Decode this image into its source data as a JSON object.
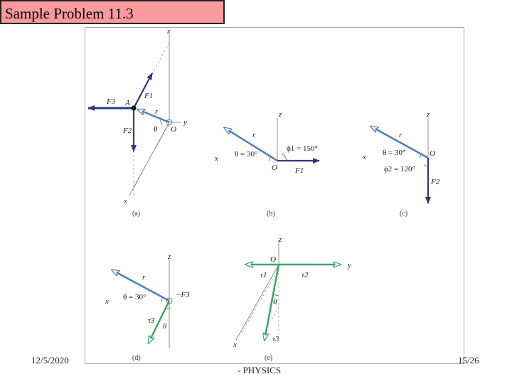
{
  "slide": {
    "title": "Sample Problem 11.3",
    "date": "12/5/2020",
    "footer_center": "- PHYSICS",
    "page": "15/26"
  },
  "colors": {
    "title_bg": "#f99a9f",
    "force_vector": "#2e3586",
    "radius_vector": "#4a7fc0",
    "torque_vector": "#3aa56a"
  },
  "figure": {
    "panel_a": {
      "caption": "(a)",
      "axis_z": "z",
      "axis_y": "y",
      "axis_x": "x",
      "point_a": "A",
      "origin": "O",
      "f1": "F1",
      "f2": "F2",
      "f3": "F3",
      "r": "r",
      "theta": "θ"
    },
    "panel_b": {
      "caption": "(b)",
      "axis_z": "z",
      "axis_x": "x",
      "origin": "O",
      "r": "r",
      "theta_eq": "θ = 30°",
      "phi1": "ϕ1 = 150°",
      "f1": "F1"
    },
    "panel_c": {
      "caption": "(c)",
      "axis_z": "z",
      "axis_x": "x",
      "origin": "O",
      "r": "r",
      "theta_eq": "θ = 30°",
      "phi2": "ϕ2 = 120°",
      "f2": "F2"
    },
    "panel_d": {
      "caption": "(d)",
      "axis_z": "z",
      "axis_x": "x",
      "r": "r",
      "theta_eq": "θ = 30°",
      "f3": "−F3",
      "tau3": "τ3",
      "theta": "θ"
    },
    "panel_e": {
      "caption": "(e)",
      "axis_z": "z",
      "axis_y": "y",
      "axis_x": "x",
      "origin": "O",
      "tau1": "τ1",
      "tau2": "τ2",
      "tau3": "τ3",
      "theta": "θ"
    }
  }
}
